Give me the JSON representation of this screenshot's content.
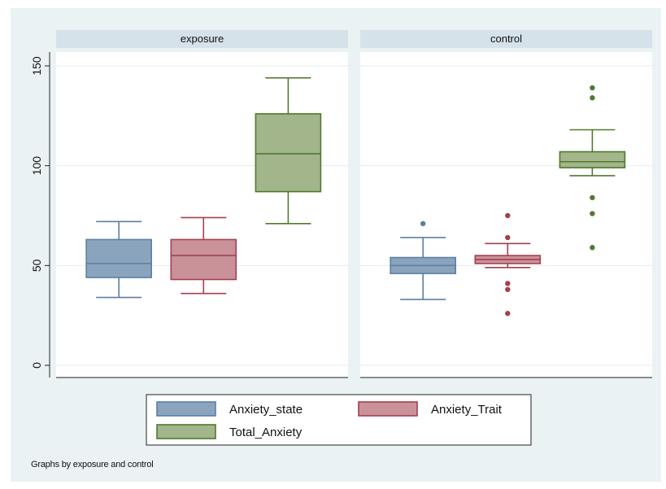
{
  "chart_data": {
    "type": "box",
    "panels": [
      "exposure",
      "control"
    ],
    "y_ticks": [
      0,
      50,
      100,
      150
    ],
    "ylim": [
      -6,
      158
    ],
    "grid": true,
    "legend_position": "bottom",
    "series": [
      {
        "name": "Anxiety_state",
        "color": "#5b7fa3",
        "fill": "#8ba4bd"
      },
      {
        "name": "Anxiety_Trait",
        "color": "#a33f4f",
        "fill": "#c9929a"
      },
      {
        "name": "Total_Anxiety",
        "color": "#4f7a2e",
        "fill": "#a3b58a"
      }
    ],
    "boxes": {
      "exposure": [
        {
          "series": "Anxiety_state",
          "min": 34,
          "q1": 44,
          "median": 51,
          "q3": 63,
          "max": 72,
          "outliers": []
        },
        {
          "series": "Anxiety_Trait",
          "min": 36,
          "q1": 43,
          "median": 55,
          "q3": 63,
          "max": 74,
          "outliers": []
        },
        {
          "series": "Total_Anxiety",
          "min": 71,
          "q1": 87,
          "median": 106,
          "q3": 126,
          "max": 144,
          "outliers": []
        }
      ],
      "control": [
        {
          "series": "Anxiety_state",
          "min": 33,
          "q1": 46,
          "median": 50,
          "q3": 54,
          "max": 64,
          "outliers": [
            71
          ]
        },
        {
          "series": "Anxiety_Trait",
          "min": 49,
          "q1": 51,
          "median": 53,
          "q3": 55,
          "max": 61,
          "outliers": [
            75,
            64,
            41,
            38,
            26
          ]
        },
        {
          "series": "Total_Anxiety",
          "min": 95,
          "q1": 99,
          "median": 102,
          "q3": 107,
          "max": 118,
          "outliers": [
            139,
            134,
            84,
            76,
            59
          ]
        }
      ]
    },
    "note": "Graphs by exposure and control"
  }
}
